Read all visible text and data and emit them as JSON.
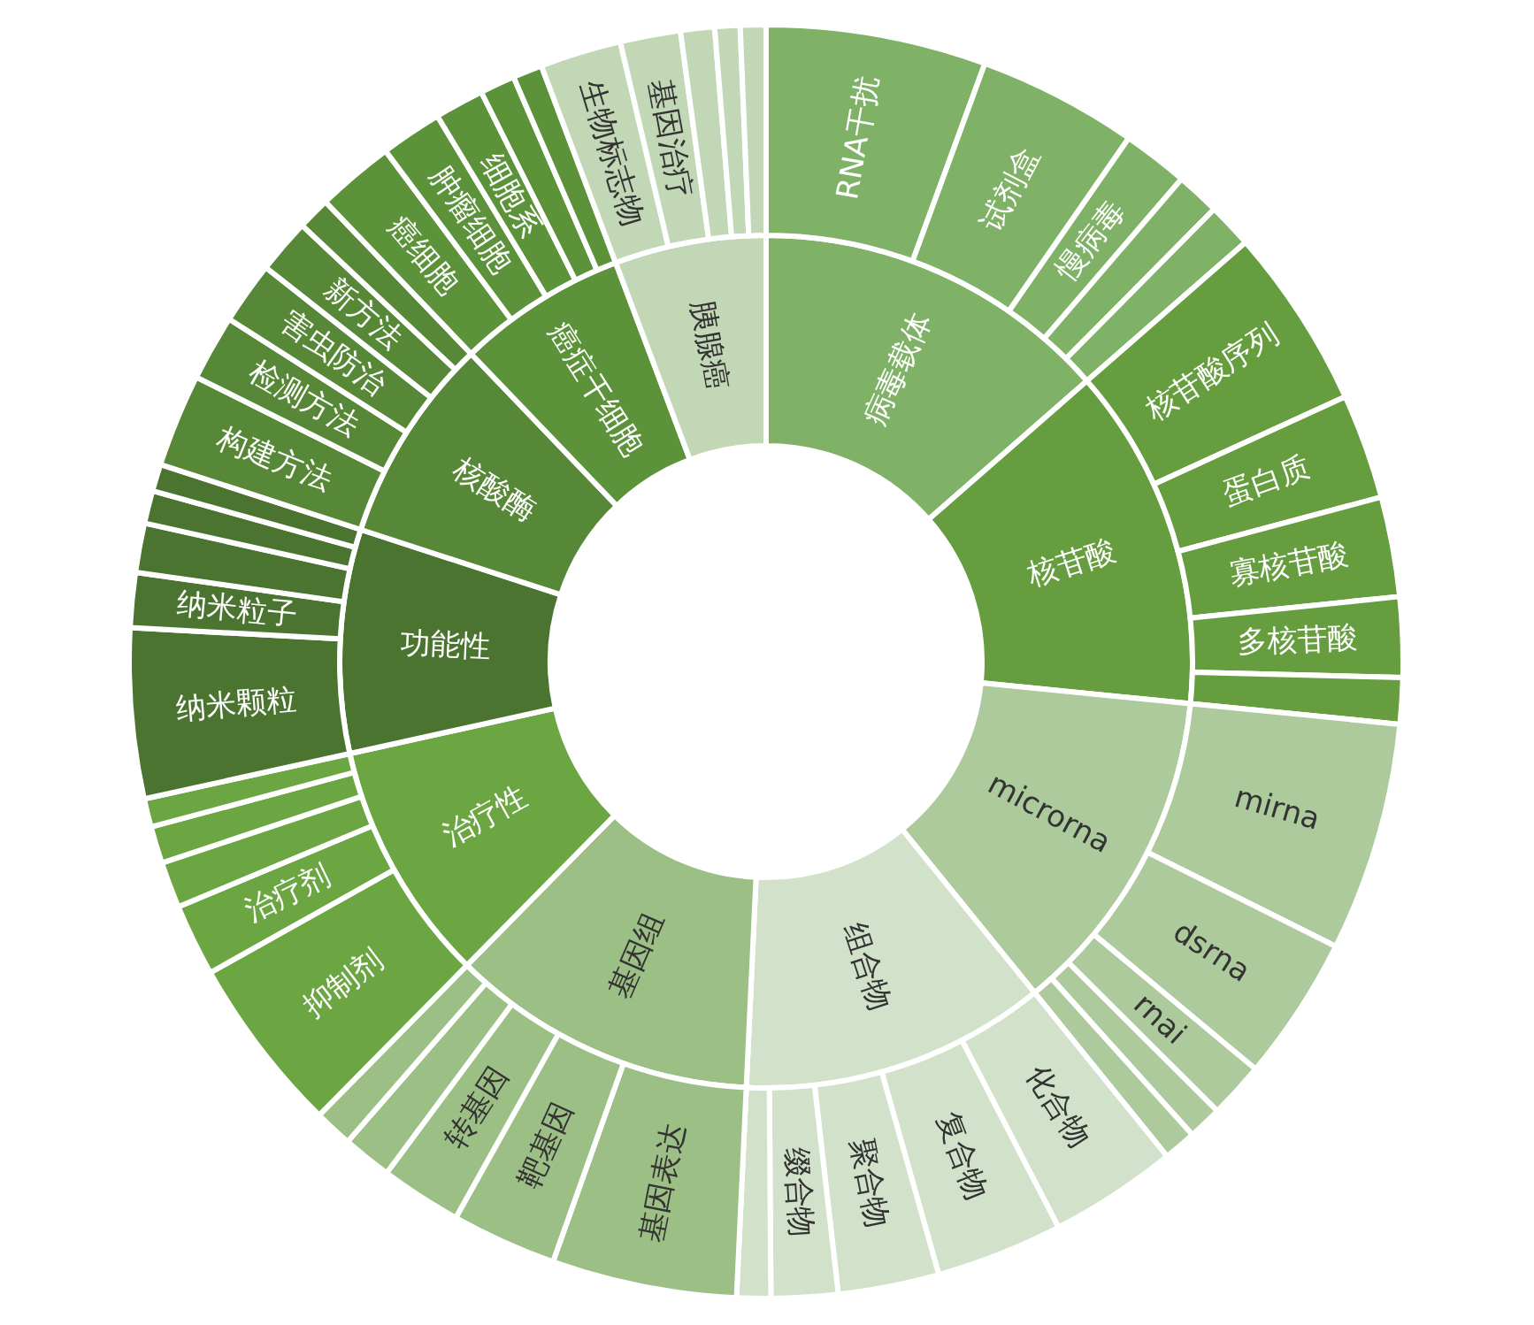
{
  "chart_data": [
    {
      "type": "donut",
      "categories": [
        "病毒载体",
        "核苷酸",
        "microrna",
        "组合物",
        "基因组",
        "治疗性",
        "功能性",
        "核酸酶",
        "癌症干细胞",
        "胰腺癌"
      ],
      "values": [
        13.56,
        13.01,
        12.59,
        11.58,
        11.64,
        9.16,
        8.47,
        7.83,
        6.42,
        5.74
      ],
      "colors": [
        "#7fb266",
        "#659d3f",
        "#adca9c",
        "#d2e2ca",
        "#9bbf85",
        "#6ca643",
        "#4b7431",
        "#578837",
        "#5c923a",
        "#c1d7b5"
      ]
    },
    {
      "type": "donut",
      "categories": [
        "RNA干扰",
        "试剂盒",
        "慢病毒",
        null,
        null,
        "核苷酸序列",
        "蛋白质",
        "寡核苷酸",
        "多核苷酸",
        null,
        "mirna",
        "dsrna",
        "rnai",
        null,
        null,
        "化合物",
        "复合物",
        "聚合物",
        "缀合物",
        null,
        "基因表达",
        "靶基因",
        "转基因",
        null,
        null,
        "抑制剂",
        "治疗剂",
        null,
        null,
        null,
        "纳米颗粒",
        "纳米粒子",
        null,
        null,
        null,
        "构建方法",
        "检测方法",
        "害虫防治",
        "新方法",
        null,
        "癌细胞",
        "肿瘤细胞",
        "细胞系",
        null,
        null,
        "生物标志物",
        "基因治疗",
        null,
        null,
        null
      ],
      "values": [
        5.58,
        4.06,
        1.67,
        1.11,
        1.14,
        4.61,
        2.67,
        2.53,
        2.03,
        1.17,
        5.81,
        3.67,
        1.42,
        0.86,
        0.83,
        3.25,
        3.22,
        2.56,
        1.69,
        0.86,
        4.69,
        2.67,
        2.06,
        1.25,
        0.97,
        4.5,
        1.83,
        1.17,
        0.94,
        0.72,
        4.31,
        1.39,
        1.25,
        0.83,
        0.69,
        2.36,
        1.67,
        1.58,
        1.39,
        0.83,
        1.97,
        1.56,
        1.25,
        0.89,
        0.75,
        2.06,
        1.53,
        0.86,
        0.64,
        0.65
      ],
      "colors": [
        "#7fb266",
        "#7fb266",
        "#7fb266",
        "#7fb266",
        "#7fb266",
        "#659d3f",
        "#659d3f",
        "#659d3f",
        "#659d3f",
        "#659d3f",
        "#adca9c",
        "#adca9c",
        "#adca9c",
        "#adca9c",
        "#adca9c",
        "#d2e2ca",
        "#d2e2ca",
        "#d2e2ca",
        "#d2e2ca",
        "#d2e2ca",
        "#9bbf85",
        "#9bbf85",
        "#9bbf85",
        "#9bbf85",
        "#9bbf85",
        "#6ca643",
        "#6ca643",
        "#6ca643",
        "#6ca643",
        "#6ca643",
        "#4b7431",
        "#4b7431",
        "#4b7431",
        "#4b7431",
        "#4b7431",
        "#578837",
        "#578837",
        "#578837",
        "#578837",
        "#578837",
        "#5c923a",
        "#5c923a",
        "#5c923a",
        "#5c923a",
        "#5c923a",
        "#c1d7b5",
        "#c1d7b5",
        "#c1d7b5",
        "#c1d7b5",
        "#c1d7b5"
      ]
    }
  ]
}
